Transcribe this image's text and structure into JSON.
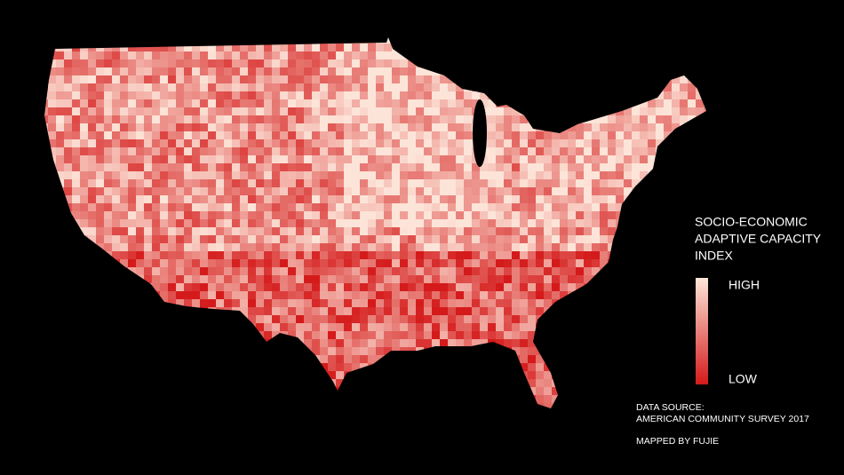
{
  "legend": {
    "title": [
      "SOCIO-ECONOMIC",
      "ADAPTIVE CAPACITY",
      "INDEX"
    ],
    "high": "HIGH",
    "low": "LOW"
  },
  "credits": {
    "source": [
      "DATA SOURCE:",
      "AMERICAN COMMUNITY SURVEY 2017"
    ],
    "mapped_by": "MAPPED BY FUJIE"
  }
}
